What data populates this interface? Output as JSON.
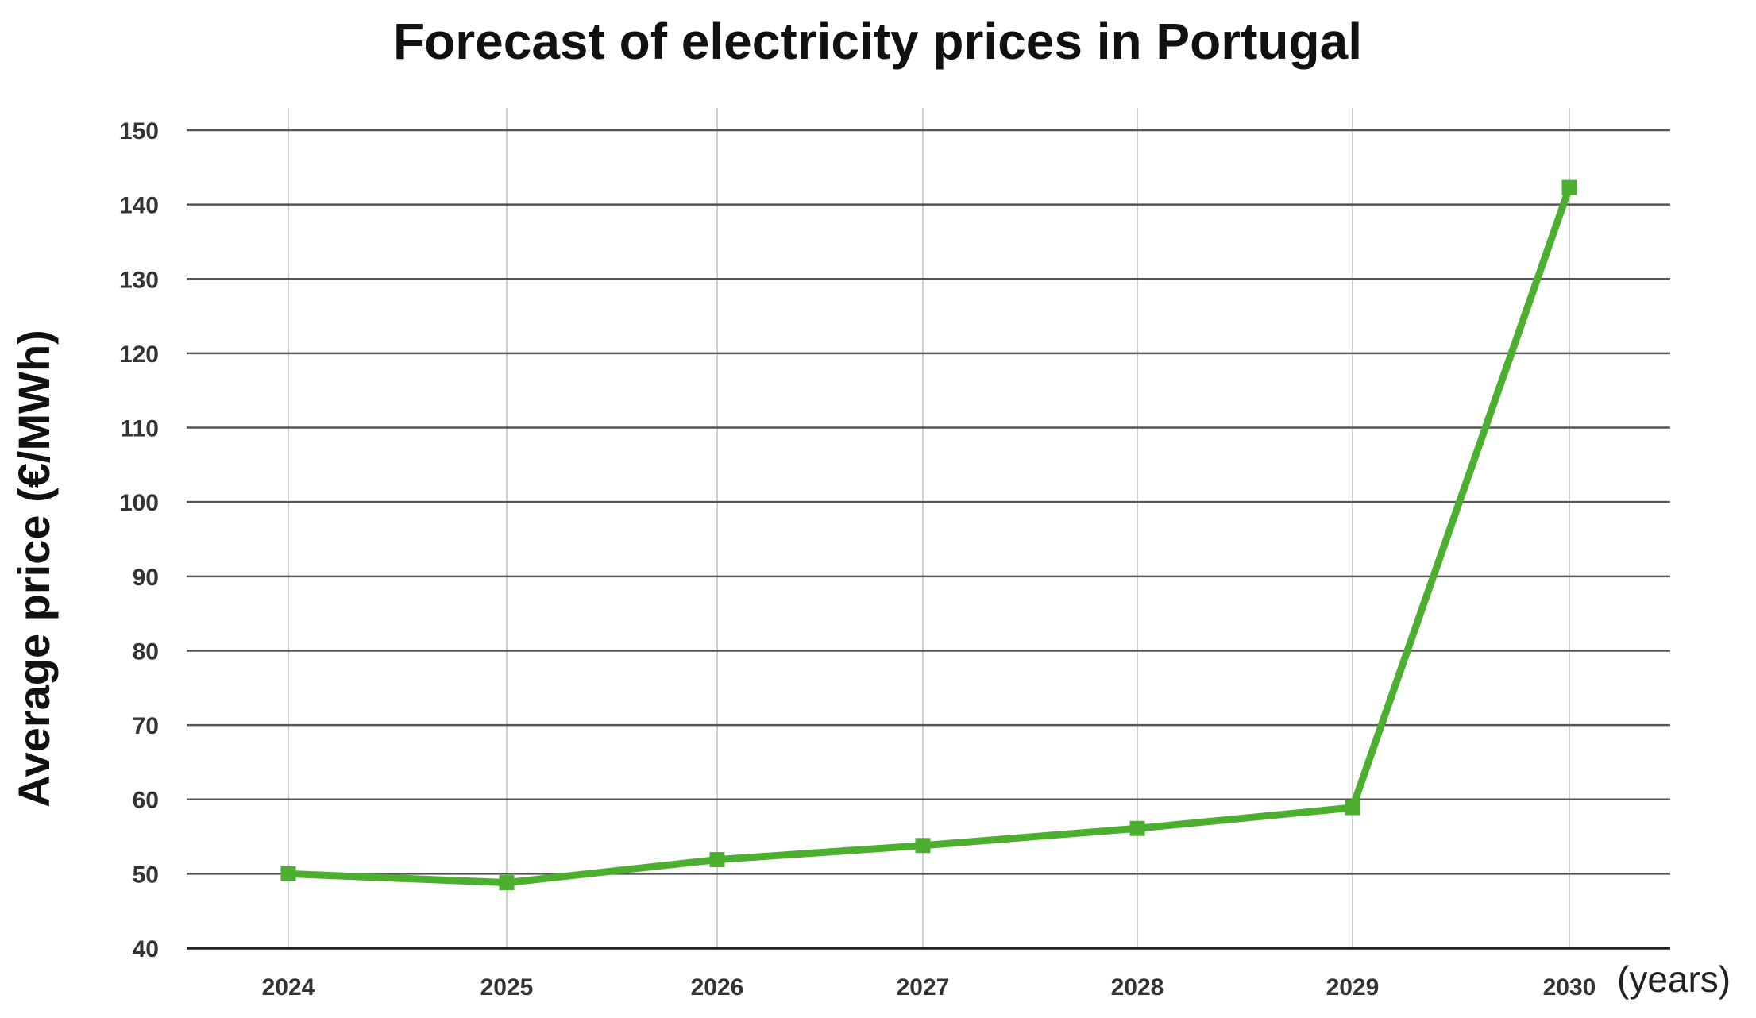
{
  "chart_data": {
    "type": "line",
    "title": "Forecast of electricity prices in Portugal",
    "xlabel": "(years)",
    "ylabel": "Average price (€/MWh)",
    "categories": [
      "2024",
      "2025",
      "2026",
      "2027",
      "2028",
      "2029",
      "2030"
    ],
    "series": [
      {
        "name": "Average price",
        "values": [
          50,
          48.8,
          51.9,
          53.8,
          56.1,
          58.9,
          142.3
        ],
        "color": "#4CAF2F",
        "marker": "square"
      }
    ],
    "ylim": [
      40,
      150
    ],
    "yticks": [
      40,
      50,
      60,
      70,
      80,
      90,
      100,
      110,
      120,
      130,
      140,
      150
    ],
    "grid": "both",
    "legend": "none"
  },
  "colors": {
    "line": "#4CAF2F",
    "h_grid": "#555555",
    "v_grid": "#cfcfcf",
    "axis": "#222222"
  }
}
